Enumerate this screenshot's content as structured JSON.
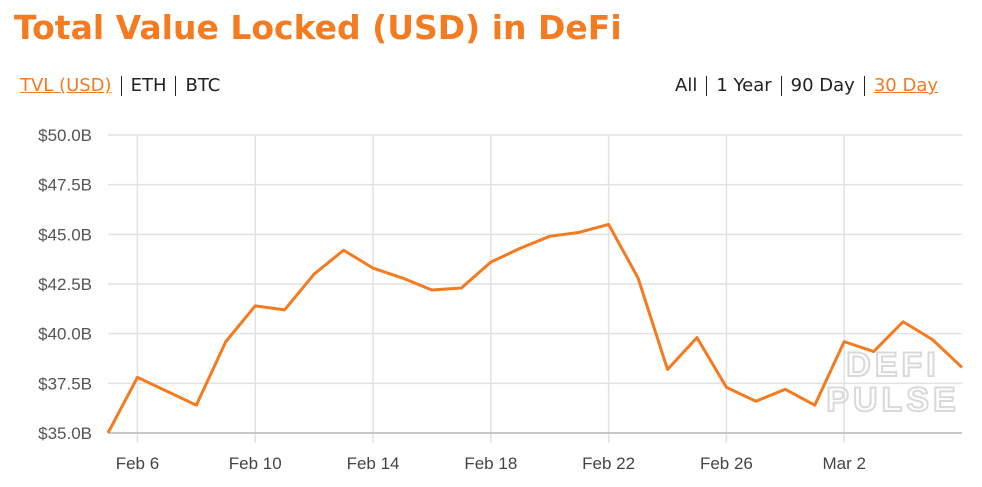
{
  "chart_data": {
    "type": "line",
    "title": "Total Value Locked (USD) in DeFi",
    "currency_options": [
      "TVL (USD)",
      "ETH",
      "BTC"
    ],
    "selected_currency": 0,
    "range_options": [
      "All",
      "1 Year",
      "90 Day",
      "30 Day"
    ],
    "selected_range": 3,
    "watermark": [
      "DEFI",
      "PULSE"
    ],
    "categories": [
      null,
      "Feb 6",
      null,
      null,
      null,
      "Feb 10",
      null,
      null,
      null,
      "Feb 14",
      null,
      null,
      null,
      "Feb 18",
      null,
      null,
      null,
      "Feb 22",
      null,
      null,
      null,
      "Feb 26",
      null,
      null,
      null,
      "Mar 2",
      null,
      null,
      null,
      null
    ],
    "series": [
      {
        "name": "TVL (USD)",
        "color": "#f47b20",
        "values": [
          35.0,
          37.8,
          37.1,
          36.4,
          39.6,
          41.4,
          41.2,
          43.0,
          44.2,
          43.3,
          42.8,
          42.2,
          42.3,
          43.6,
          44.3,
          44.9,
          45.1,
          45.5,
          42.8,
          38.2,
          39.8,
          37.3,
          36.6,
          37.2,
          36.4,
          39.6,
          39.1,
          40.6,
          39.7,
          38.3
        ]
      }
    ],
    "ylim": [
      35,
      50
    ],
    "yticks": [
      {
        "value": 35,
        "label": "$35.0B"
      },
      {
        "value": 37.5,
        "label": "$37.5B"
      },
      {
        "value": 40,
        "label": "$40.0B"
      },
      {
        "value": 42.5,
        "label": "$42.5B"
      },
      {
        "value": 45,
        "label": "$45.0B"
      },
      {
        "value": 47.5,
        "label": "$47.5B"
      },
      {
        "value": 50,
        "label": "$50.0B"
      }
    ],
    "grid": true
  }
}
